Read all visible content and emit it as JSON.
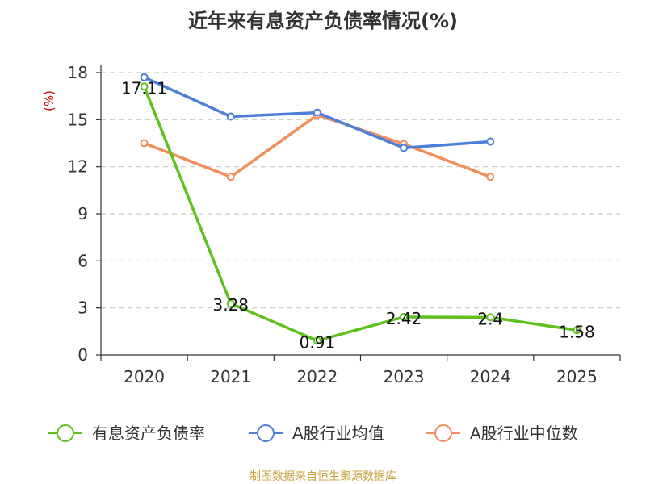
{
  "chart_data": {
    "type": "line",
    "title": "近年来有息资产负债率情况(%)",
    "ylabel": "(%)",
    "xlabel": "",
    "categories": [
      "2020",
      "2021",
      "2022",
      "2023",
      "2024",
      "2025"
    ],
    "ylim": [
      0,
      18
    ],
    "yticks": [
      0,
      3,
      6,
      9,
      12,
      15,
      18
    ],
    "grid": true,
    "legend_position": "bottom",
    "series": [
      {
        "name": "有息资产负债率",
        "color": "#5fc01e",
        "values": [
          17.11,
          3.28,
          0.91,
          2.42,
          2.4,
          1.58
        ],
        "labels": [
          "17.11",
          "3.28",
          "0.91",
          "2.42",
          "2.4",
          "1.58"
        ],
        "show_labels": true
      },
      {
        "name": "A股行业均值",
        "color": "#4e7fd8",
        "values": [
          17.7,
          15.2,
          15.45,
          13.2,
          13.6,
          null
        ],
        "show_labels": false
      },
      {
        "name": "A股行业中位数",
        "color": "#f28e5b",
        "values": [
          13.5,
          11.35,
          15.3,
          13.45,
          11.35,
          null
        ],
        "show_labels": false
      }
    ],
    "source": "制图数据来自恒生聚源数据库"
  }
}
